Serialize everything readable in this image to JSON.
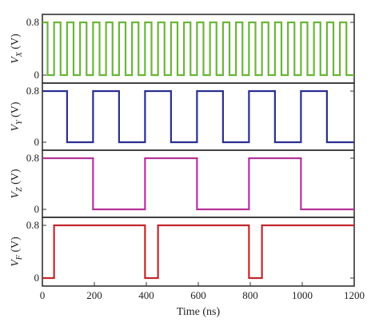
{
  "chart_data": {
    "type": "line",
    "xlabel": "Time (ns)",
    "xlim": [
      0,
      1200
    ],
    "x_ticks": [
      "0",
      "200",
      "400",
      "600",
      "800",
      "1000",
      "1200"
    ],
    "panels": [
      {
        "ylabel_main": "V",
        "ylabel_sub": "X",
        "ylabel_unit": " (V)",
        "y_ticks": [
          "0.8",
          "0"
        ],
        "ylim": [
          0,
          0.8
        ],
        "color": "#6bb53a",
        "series": {
          "x": [
            0,
            20,
            20,
            45,
            45,
            70,
            70,
            95,
            95,
            120,
            120,
            145,
            145,
            170,
            170,
            195,
            195,
            220,
            220,
            245,
            245,
            270,
            270,
            295,
            295,
            320,
            320,
            345,
            345,
            370,
            370,
            395,
            395,
            420,
            420,
            445,
            445,
            470,
            470,
            495,
            495,
            520,
            520,
            545,
            545,
            570,
            570,
            595,
            595,
            620,
            620,
            645,
            645,
            670,
            670,
            695,
            695,
            720,
            720,
            745,
            745,
            770,
            770,
            795,
            795,
            820,
            820,
            845,
            845,
            870,
            870,
            895,
            895,
            920,
            920,
            945,
            945,
            970,
            970,
            995,
            995,
            1020,
            1020,
            1045,
            1045,
            1070,
            1070,
            1095,
            1095,
            1120,
            1120,
            1145,
            1145,
            1170,
            1170,
            1200
          ],
          "y": [
            0.8,
            0.8,
            0,
            0,
            0.8,
            0.8,
            0,
            0,
            0.8,
            0.8,
            0,
            0,
            0.8,
            0.8,
            0,
            0,
            0.8,
            0.8,
            0,
            0,
            0.8,
            0.8,
            0,
            0,
            0.8,
            0.8,
            0,
            0,
            0.8,
            0.8,
            0,
            0,
            0.8,
            0.8,
            0,
            0,
            0.8,
            0.8,
            0,
            0,
            0.8,
            0.8,
            0,
            0,
            0.8,
            0.8,
            0,
            0,
            0.8,
            0.8,
            0,
            0,
            0.8,
            0.8,
            0,
            0,
            0.8,
            0.8,
            0,
            0,
            0.8,
            0.8,
            0,
            0,
            0.8,
            0.8,
            0,
            0,
            0.8,
            0.8,
            0,
            0,
            0.8,
            0.8,
            0,
            0,
            0.8,
            0.8,
            0,
            0,
            0.8,
            0.8,
            0,
            0,
            0.8,
            0.8,
            0,
            0,
            0.8,
            0.8,
            0,
            0,
            0.8,
            0.8,
            0,
            0
          ]
        }
      },
      {
        "ylabel_main": "V",
        "ylabel_sub": "Y",
        "ylabel_unit": " (V)",
        "y_ticks": [
          "0.8",
          "0"
        ],
        "ylim": [
          0,
          0.8
        ],
        "color": "#2a2f8f",
        "series": {
          "x": [
            0,
            95,
            95,
            195,
            195,
            295,
            295,
            395,
            395,
            495,
            495,
            595,
            595,
            695,
            695,
            795,
            795,
            895,
            895,
            995,
            995,
            1095,
            1095,
            1200
          ],
          "y": [
            0.8,
            0.8,
            0,
            0,
            0.8,
            0.8,
            0,
            0,
            0.8,
            0.8,
            0,
            0,
            0.8,
            0.8,
            0,
            0,
            0.8,
            0.8,
            0,
            0,
            0.8,
            0.8,
            0,
            0
          ]
        }
      },
      {
        "ylabel_main": "V",
        "ylabel_sub": "Z",
        "ylabel_unit": " (V)",
        "y_ticks": [
          "0.8",
          "0"
        ],
        "ylim": [
          0,
          0.8
        ],
        "color": "#b5339a",
        "series": {
          "x": [
            0,
            195,
            195,
            395,
            395,
            595,
            595,
            795,
            795,
            995,
            995,
            1200
          ],
          "y": [
            0.8,
            0.8,
            0,
            0,
            0.8,
            0.8,
            0,
            0,
            0.8,
            0.8,
            0,
            0
          ]
        }
      },
      {
        "ylabel_main": "V",
        "ylabel_sub": "F",
        "ylabel_unit": " (V)",
        "y_ticks": [
          "0.8",
          "0"
        ],
        "ylim": [
          0,
          0.8
        ],
        "color": "#c0282d",
        "series": {
          "x": [
            0,
            45,
            45,
            395,
            395,
            445,
            445,
            795,
            795,
            845,
            845,
            1200
          ],
          "y": [
            0,
            0,
            0.8,
            0.8,
            0,
            0,
            0.8,
            0.8,
            0,
            0,
            0.8,
            0.8
          ]
        }
      }
    ]
  }
}
